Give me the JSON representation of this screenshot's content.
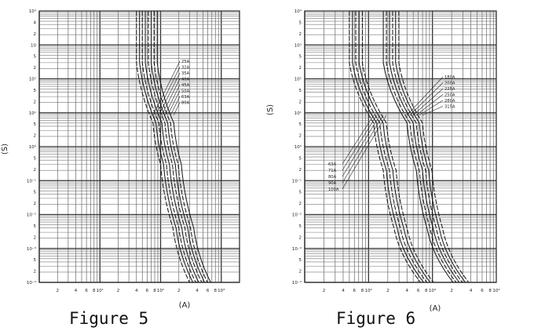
{
  "figures": [
    {
      "caption": "Figure 5",
      "xunit": "(A)",
      "yunit": "(S)"
    },
    {
      "caption": "Figure 6",
      "xunit": "(A)",
      "yunit": "(S)"
    }
  ],
  "chart_data": [
    {
      "type": "line",
      "title": "",
      "xlabel": "(A)",
      "ylabel": "(S)",
      "xscale": "log",
      "yscale": "log",
      "xlim": [
        1,
        2000
      ],
      "ylim": [
        0.0001,
        10000
      ],
      "grid": true,
      "y_tick_labels": [
        "10⁴",
        "4",
        "2",
        "10",
        "5",
        "2",
        "10²",
        "5",
        "2",
        "10¹",
        "5",
        "2",
        "10⁰",
        "5",
        "2",
        "10⁻¹",
        "5",
        "2",
        "10⁻²",
        "5",
        "2",
        "10⁻³",
        "5",
        "2",
        "10⁻⁴"
      ],
      "x_tick_labels": [
        "2",
        "4",
        "6",
        "8",
        "10¹",
        "2",
        "4",
        "6",
        "8",
        "10²",
        "2",
        "4",
        "6",
        "8",
        "10³"
      ],
      "series": [
        {
          "name": "25A",
          "points": [
            [
              40,
              10000
            ],
            [
              40,
              300
            ],
            [
              75,
              5
            ],
            [
              100,
              0.3
            ],
            [
              160,
              0.004
            ],
            [
              300,
              0.0001
            ]
          ]
        },
        {
          "name": "32A",
          "points": [
            [
              45,
              10000
            ],
            [
              45,
              300
            ],
            [
              84,
              5
            ],
            [
              112,
              0.3
            ],
            [
              180,
              0.004
            ],
            [
              340,
              0.0001
            ]
          ]
        },
        {
          "name": "35A",
          "points": [
            [
              50,
              10000
            ],
            [
              50,
              300
            ],
            [
              94,
              5
            ],
            [
              125,
              0.3
            ],
            [
              200,
              0.004
            ],
            [
              380,
              0.0001
            ]
          ]
        },
        {
          "name": "40A",
          "points": [
            [
              56,
              10000
            ],
            [
              56,
              300
            ],
            [
              105,
              5
            ],
            [
              140,
              0.3
            ],
            [
              224,
              0.004
            ],
            [
              425,
              0.0001
            ]
          ]
        },
        {
          "name": "45A",
          "points": [
            [
              63,
              10000
            ],
            [
              63,
              300
            ],
            [
              118,
              5
            ],
            [
              157,
              0.3
            ],
            [
              252,
              0.004
            ],
            [
              478,
              0.0001
            ]
          ]
        },
        {
          "name": "50A",
          "points": [
            [
              70,
              10000
            ],
            [
              70,
              300
            ],
            [
              131,
              5
            ],
            [
              175,
              0.3
            ],
            [
              280,
              0.004
            ],
            [
              531,
              0.0001
            ]
          ]
        },
        {
          "name": "63A",
          "points": [
            [
              78,
              10000
            ],
            [
              78,
              300
            ],
            [
              146,
              5
            ],
            [
              195,
              0.3
            ],
            [
              312,
              0.004
            ],
            [
              593,
              0.0001
            ]
          ]
        },
        {
          "name": "80A",
          "points": [
            [
              88,
              10000
            ],
            [
              88,
              300
            ],
            [
              165,
              5
            ],
            [
              220,
              0.3
            ],
            [
              352,
              0.004
            ],
            [
              668,
              0.0001
            ]
          ]
        }
      ]
    },
    {
      "type": "line",
      "title": "",
      "xlabel": "(A)",
      "ylabel": "(S)",
      "xscale": "log",
      "yscale": "log",
      "xlim": [
        10,
        10000
      ],
      "ylim": [
        0.0001,
        10000
      ],
      "grid": true,
      "y_tick_labels": [
        "10⁴",
        "5",
        "2",
        "10³",
        "5",
        "2",
        "10²",
        "5",
        "2",
        "10¹",
        "5",
        "2",
        "10⁰",
        "5",
        "2",
        "10⁻¹",
        "5",
        "2",
        "10⁻²",
        "5",
        "2",
        "10⁻³",
        "5",
        "2",
        "10⁻⁴"
      ],
      "x_tick_labels": [
        "2",
        "4",
        "6",
        "8",
        "10²",
        "2",
        "4",
        "6",
        "8",
        "10³",
        "2",
        "4",
        "6",
        "8",
        "10⁴"
      ],
      "series": [
        {
          "name": "63A",
          "points": [
            [
              50,
              10000
            ],
            [
              50,
              300
            ],
            [
              120,
              5
            ],
            [
              170,
              0.2
            ],
            [
              250,
              0.004
            ],
            [
              650,
              0.0001
            ]
          ]
        },
        {
          "name": "71A",
          "points": [
            [
              56,
              10000
            ],
            [
              56,
              300
            ],
            [
              134,
              5
            ],
            [
              190,
              0.2
            ],
            [
              280,
              0.004
            ],
            [
              728,
              0.0001
            ]
          ]
        },
        {
          "name": "80A",
          "points": [
            [
              63,
              10000
            ],
            [
              63,
              300
            ],
            [
              150,
              5
            ],
            [
              213,
              0.2
            ],
            [
              315,
              0.004
            ],
            [
              819,
              0.0001
            ]
          ]
        },
        {
          "name": "90A",
          "points": [
            [
              71,
              10000
            ],
            [
              71,
              300
            ],
            [
              169,
              5
            ],
            [
              240,
              0.2
            ],
            [
              355,
              0.004
            ],
            [
              923,
              0.0001
            ]
          ]
        },
        {
          "name": "100A",
          "points": [
            [
              80,
              10000
            ],
            [
              80,
              300
            ],
            [
              190,
              5
            ],
            [
              270,
              0.2
            ],
            [
              400,
              0.004
            ],
            [
              1040,
              0.0001
            ]
          ]
        },
        {
          "name": "180A",
          "points": [
            [
              170,
              10000
            ],
            [
              170,
              300
            ],
            [
              400,
              5
            ],
            [
              560,
              0.2
            ],
            [
              820,
              0.004
            ],
            [
              2100,
              0.0001
            ]
          ]
        },
        {
          "name": "200A",
          "points": [
            [
              190,
              10000
            ],
            [
              190,
              300
            ],
            [
              445,
              5
            ],
            [
              625,
              0.2
            ],
            [
              915,
              0.004
            ],
            [
              2350,
              0.0001
            ]
          ]
        },
        {
          "name": "225A",
          "points": [
            [
              213,
              10000
            ],
            [
              213,
              300
            ],
            [
              500,
              5
            ],
            [
              700,
              0.2
            ],
            [
              1025,
              0.004
            ],
            [
              2630,
              0.0001
            ]
          ]
        },
        {
          "name": "250A",
          "points": [
            [
              238,
              10000
            ],
            [
              238,
              300
            ],
            [
              558,
              5
            ],
            [
              783,
              0.2
            ],
            [
              1146,
              0.004
            ],
            [
              2940,
              0.0001
            ]
          ]
        },
        {
          "name": "280A",
          "points": [
            [
              265,
              10000
            ],
            [
              265,
              300
            ],
            [
              622,
              5
            ],
            [
              873,
              0.2
            ],
            [
              1278,
              0.004
            ],
            [
              3280,
              0.0001
            ]
          ]
        },
        {
          "name": "315A",
          "points": [
            [
              298,
              10000
            ],
            [
              298,
              300
            ],
            [
              700,
              5
            ],
            [
              982,
              0.2
            ],
            [
              1437,
              0.004
            ],
            [
              3690,
              0.0001
            ]
          ]
        }
      ]
    }
  ]
}
